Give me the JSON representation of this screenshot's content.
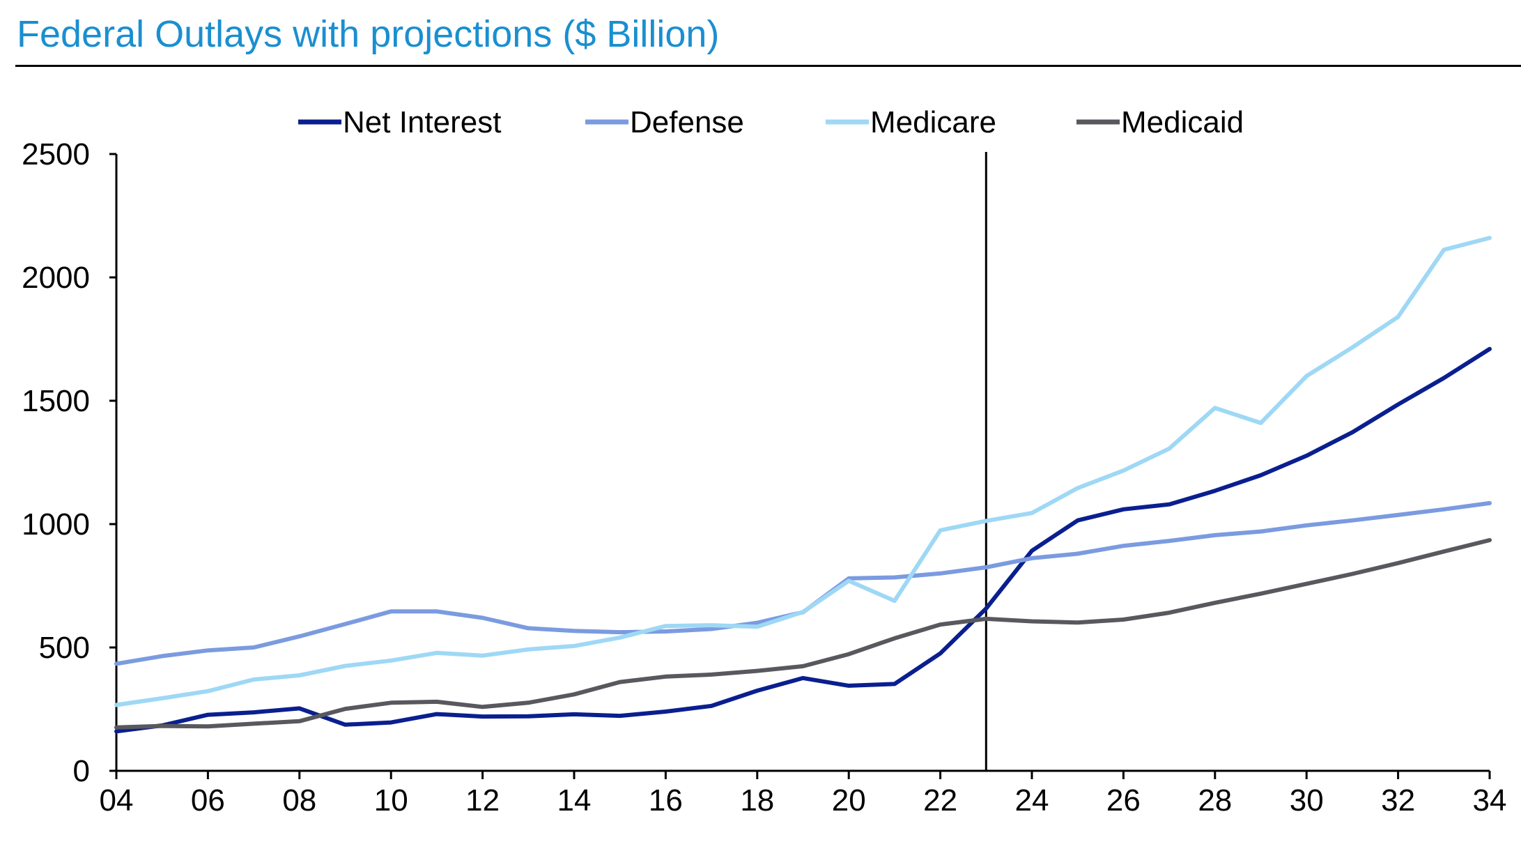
{
  "title": "Federal Outlays with projections ($ Billion)",
  "chart_data": {
    "type": "line",
    "title": "Federal Outlays with projections ($ Billion)",
    "xlabel": "",
    "ylabel": "",
    "x": [
      "04",
      "05",
      "06",
      "07",
      "08",
      "09",
      "10",
      "11",
      "12",
      "13",
      "14",
      "15",
      "16",
      "17",
      "18",
      "19",
      "20",
      "21",
      "22",
      "23",
      "24",
      "25",
      "26",
      "27",
      "28",
      "29",
      "30",
      "31",
      "32",
      "33",
      "34"
    ],
    "x_tick_labels": [
      "04",
      "06",
      "08",
      "10",
      "12",
      "14",
      "16",
      "18",
      "20",
      "22",
      "24",
      "26",
      "28",
      "30",
      "32",
      "34"
    ],
    "y_tick_labels": [
      "0",
      "500",
      "1000",
      "1500",
      "2000",
      "2500"
    ],
    "ylim": [
      0,
      2500
    ],
    "grid": false,
    "legend_position": "top",
    "projection_marker_year": "23",
    "series": [
      {
        "name": "Net Interest",
        "color": "#0a1f8f",
        "values": [
          160,
          184,
          227,
          237,
          253,
          187,
          196,
          230,
          220,
          221,
          229,
          223,
          240,
          263,
          325,
          376,
          345,
          352,
          476,
          658,
          892,
          1015,
          1060,
          1080,
          1135,
          1198,
          1277,
          1372,
          1485,
          1592,
          1710
        ]
      },
      {
        "name": "Defense",
        "color": "#7b9be0",
        "values": [
          434,
          465,
          488,
          500,
          545,
          595,
          646,
          646,
          620,
          578,
          567,
          562,
          565,
          575,
          600,
          643,
          780,
          784,
          800,
          825,
          862,
          880,
          912,
          932,
          955,
          970,
          995,
          1015,
          1037,
          1060,
          1085
        ]
      },
      {
        "name": "Medicare",
        "color": "#9ed8f5",
        "values": [
          267,
          294,
          323,
          370,
          387,
          425,
          447,
          478,
          467,
          492,
          506,
          540,
          587,
          590,
          584,
          644,
          770,
          689,
          975,
          1013,
          1045,
          1146,
          1217,
          1306,
          1471,
          1410,
          1600,
          1716,
          1840,
          2112,
          2160
        ]
      },
      {
        "name": "Medicaid",
        "color": "#58585e",
        "values": [
          176,
          182,
          180,
          191,
          201,
          251,
          276,
          280,
          259,
          276,
          310,
          360,
          382,
          390,
          405,
          424,
          473,
          537,
          593,
          616,
          606,
          601,
          613,
          641,
          681,
          718,
          758,
          798,
          842,
          889,
          935
        ]
      }
    ]
  }
}
